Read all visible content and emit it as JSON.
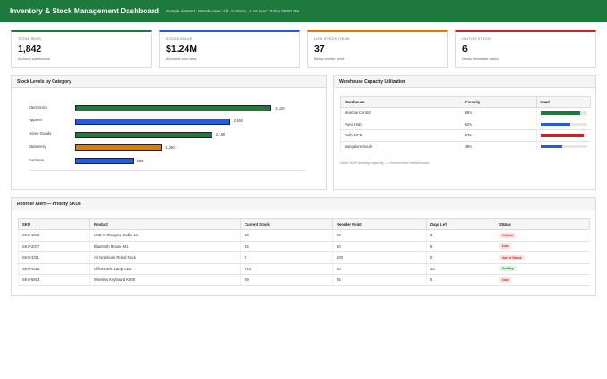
{
  "header": {
    "title": "Inventory & Stock Management Dashboard",
    "meta": "Sample dataset · Warehouses: All Locations · Last sync: Today 08:00 AM"
  },
  "kpis": [
    {
      "label": "Total SKUs",
      "value": "1,842",
      "sub": "Across 4 warehouses",
      "accent": "#1e7a3c"
    },
    {
      "label": "Stock Value",
      "value": "$1.24M",
      "sub": "At current cost basis",
      "accent": "#2a5bd7"
    },
    {
      "label": "Low Stock Items",
      "value": "37",
      "sub": "Below reorder point",
      "accent": "#e07b00"
    },
    {
      "label": "Out of Stock",
      "value": "6",
      "sub": "Needs immediate action",
      "accent": "#cc2222"
    }
  ],
  "stock_panel": {
    "title": "Stock Levels by Category"
  },
  "chart_data": {
    "type": "bar",
    "orientation": "horizontal",
    "title": "Stock Levels by Category",
    "categories": [
      "Electronics",
      "Apparel",
      "Home Goods",
      "Stationery",
      "Furniture"
    ],
    "values": [
      3120,
      2460,
      2180,
      1380,
      930
    ],
    "value_labels": [
      "3,120",
      "2,460",
      "2,180",
      "1,380",
      "930"
    ],
    "colors": [
      "#1e7a3c",
      "#2a5bd7",
      "#1e7a3c",
      "#e07b00",
      "#2a5bd7"
    ],
    "xlim": [
      0,
      3800
    ],
    "grid": false,
    "legend": "none"
  },
  "capacity_panel": {
    "title": "Warehouse Capacity Utilization",
    "columns": [
      "Warehouse",
      "Capacity",
      "Used"
    ],
    "rows": [
      {
        "warehouse": "Mumbai Central",
        "capacity": "85%",
        "used": 0.85,
        "color": "#1e7a3c"
      },
      {
        "warehouse": "Pune Hub",
        "capacity": "62%",
        "used": 0.62,
        "color": "#2a5bd7"
      },
      {
        "warehouse": "Delhi NCR",
        "capacity": "93%",
        "used": 0.93,
        "color": "#cc2222"
      },
      {
        "warehouse": "Bangalore South",
        "capacity": "48%",
        "used": 0.48,
        "color": "#2a5bd7"
      }
    ],
    "note": "Delhi NCR nearing capacity — recommend redistribution."
  },
  "reorder_panel": {
    "title": "Reorder Alert — Priority SKUs",
    "columns": [
      "SKU",
      "Product",
      "Current Stock",
      "Reorder Point",
      "Days Left",
      "Status"
    ],
    "rows": [
      {
        "sku": "SKU-1042",
        "product": "USB-C Charging Cable 1m",
        "current": "18",
        "reorder": "50",
        "days": "3",
        "status": "Critical",
        "status_bg": "#fde2e2",
        "status_fg": "#c62828"
      },
      {
        "sku": "SKU-2077",
        "product": "Bluetooth Mouse M1",
        "current": "34",
        "reorder": "60",
        "days": "6",
        "status": "Low",
        "status_bg": "#fde2e2",
        "status_fg": "#c62828"
      },
      {
        "sku": "SKU-3311",
        "product": "A4 Notebook Ruled Pack",
        "current": "0",
        "reorder": "100",
        "days": "0",
        "status": "Out of Stock",
        "status_bg": "#fde2e2",
        "status_fg": "#c62828"
      },
      {
        "sku": "SKU-4418",
        "product": "Office Desk Lamp LED",
        "current": "210",
        "reorder": "80",
        "days": "34",
        "status": "Healthy",
        "status_bg": "#dff2e3",
        "status_fg": "#1e7a3c"
      },
      {
        "sku": "SKU-5823",
        "product": "Wireless Keyboard K200",
        "current": "29",
        "reorder": "45",
        "days": "5",
        "status": "Low",
        "status_bg": "#fde2e2",
        "status_fg": "#c62828"
      }
    ]
  }
}
